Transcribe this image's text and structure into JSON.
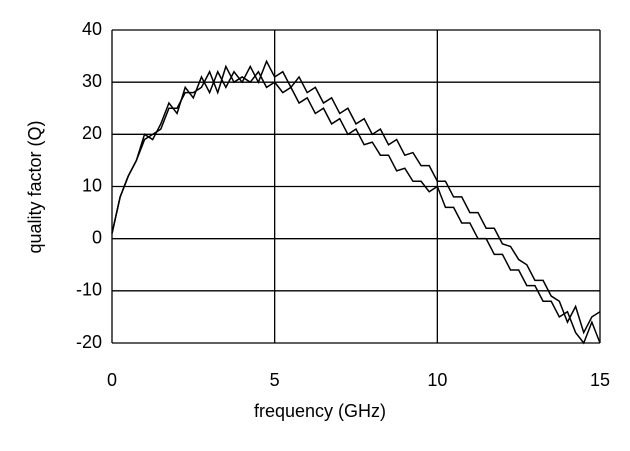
{
  "chart_data": {
    "type": "line",
    "x_label": "frequency (GHz)",
    "y_label": "quality factor (Q)",
    "x": [
      0,
      0.25,
      0.5,
      0.75,
      1,
      1.25,
      1.5,
      1.75,
      2,
      2.25,
      2.5,
      2.75,
      3,
      3.25,
      3.5,
      3.75,
      4,
      4.25,
      4.5,
      4.75,
      5,
      5.25,
      5.5,
      5.75,
      6,
      6.25,
      6.5,
      6.75,
      7,
      7.25,
      7.5,
      7.75,
      8,
      8.25,
      8.5,
      8.75,
      9,
      9.25,
      9.5,
      9.75,
      10,
      10.25,
      10.5,
      10.75,
      11,
      11.25,
      11.5,
      11.75,
      12,
      12.25,
      12.5,
      12.75,
      13,
      13.25,
      13.5,
      13.75,
      14,
      14.25,
      14.5,
      14.75,
      15
    ],
    "series": [
      {
        "color": "#000000",
        "values": [
          1,
          8,
          12,
          15,
          20,
          19,
          22,
          26,
          24,
          29,
          27,
          31,
          28,
          32,
          29,
          32,
          30,
          33,
          30,
          34,
          31,
          32,
          29,
          31,
          28,
          29,
          26,
          27,
          24,
          25,
          22,
          23,
          20,
          21,
          18,
          19,
          16,
          16.5,
          14,
          14,
          11,
          11,
          8,
          8,
          5,
          5,
          2,
          2,
          -1,
          -1.5,
          -4,
          -5,
          -8,
          -8,
          -11,
          -12,
          -16,
          -13,
          -18,
          -15,
          -14
        ]
      },
      {
        "color": "#000000",
        "values": [
          1,
          8,
          12,
          15,
          19,
          20,
          21,
          25,
          25,
          28,
          28,
          29,
          32,
          28,
          33,
          30,
          31,
          30,
          32,
          29,
          30,
          28,
          29,
          26,
          27,
          24,
          25,
          22,
          23,
          20,
          21,
          18,
          18.5,
          16,
          16,
          13,
          13.5,
          11,
          11,
          9,
          10,
          6,
          6,
          3,
          3,
          0,
          0,
          -3,
          -3,
          -6,
          -6,
          -9,
          -9,
          -12,
          -12,
          -15,
          -14,
          -18,
          -20,
          -16,
          -20
        ]
      }
    ],
    "xlim": [
      0,
      15
    ],
    "xticks": [
      0,
      5,
      10,
      15
    ],
    "ylim": [
      -20,
      40
    ],
    "yticks": [
      -20,
      -10,
      0,
      10,
      20,
      30,
      40
    ],
    "grid": true
  }
}
